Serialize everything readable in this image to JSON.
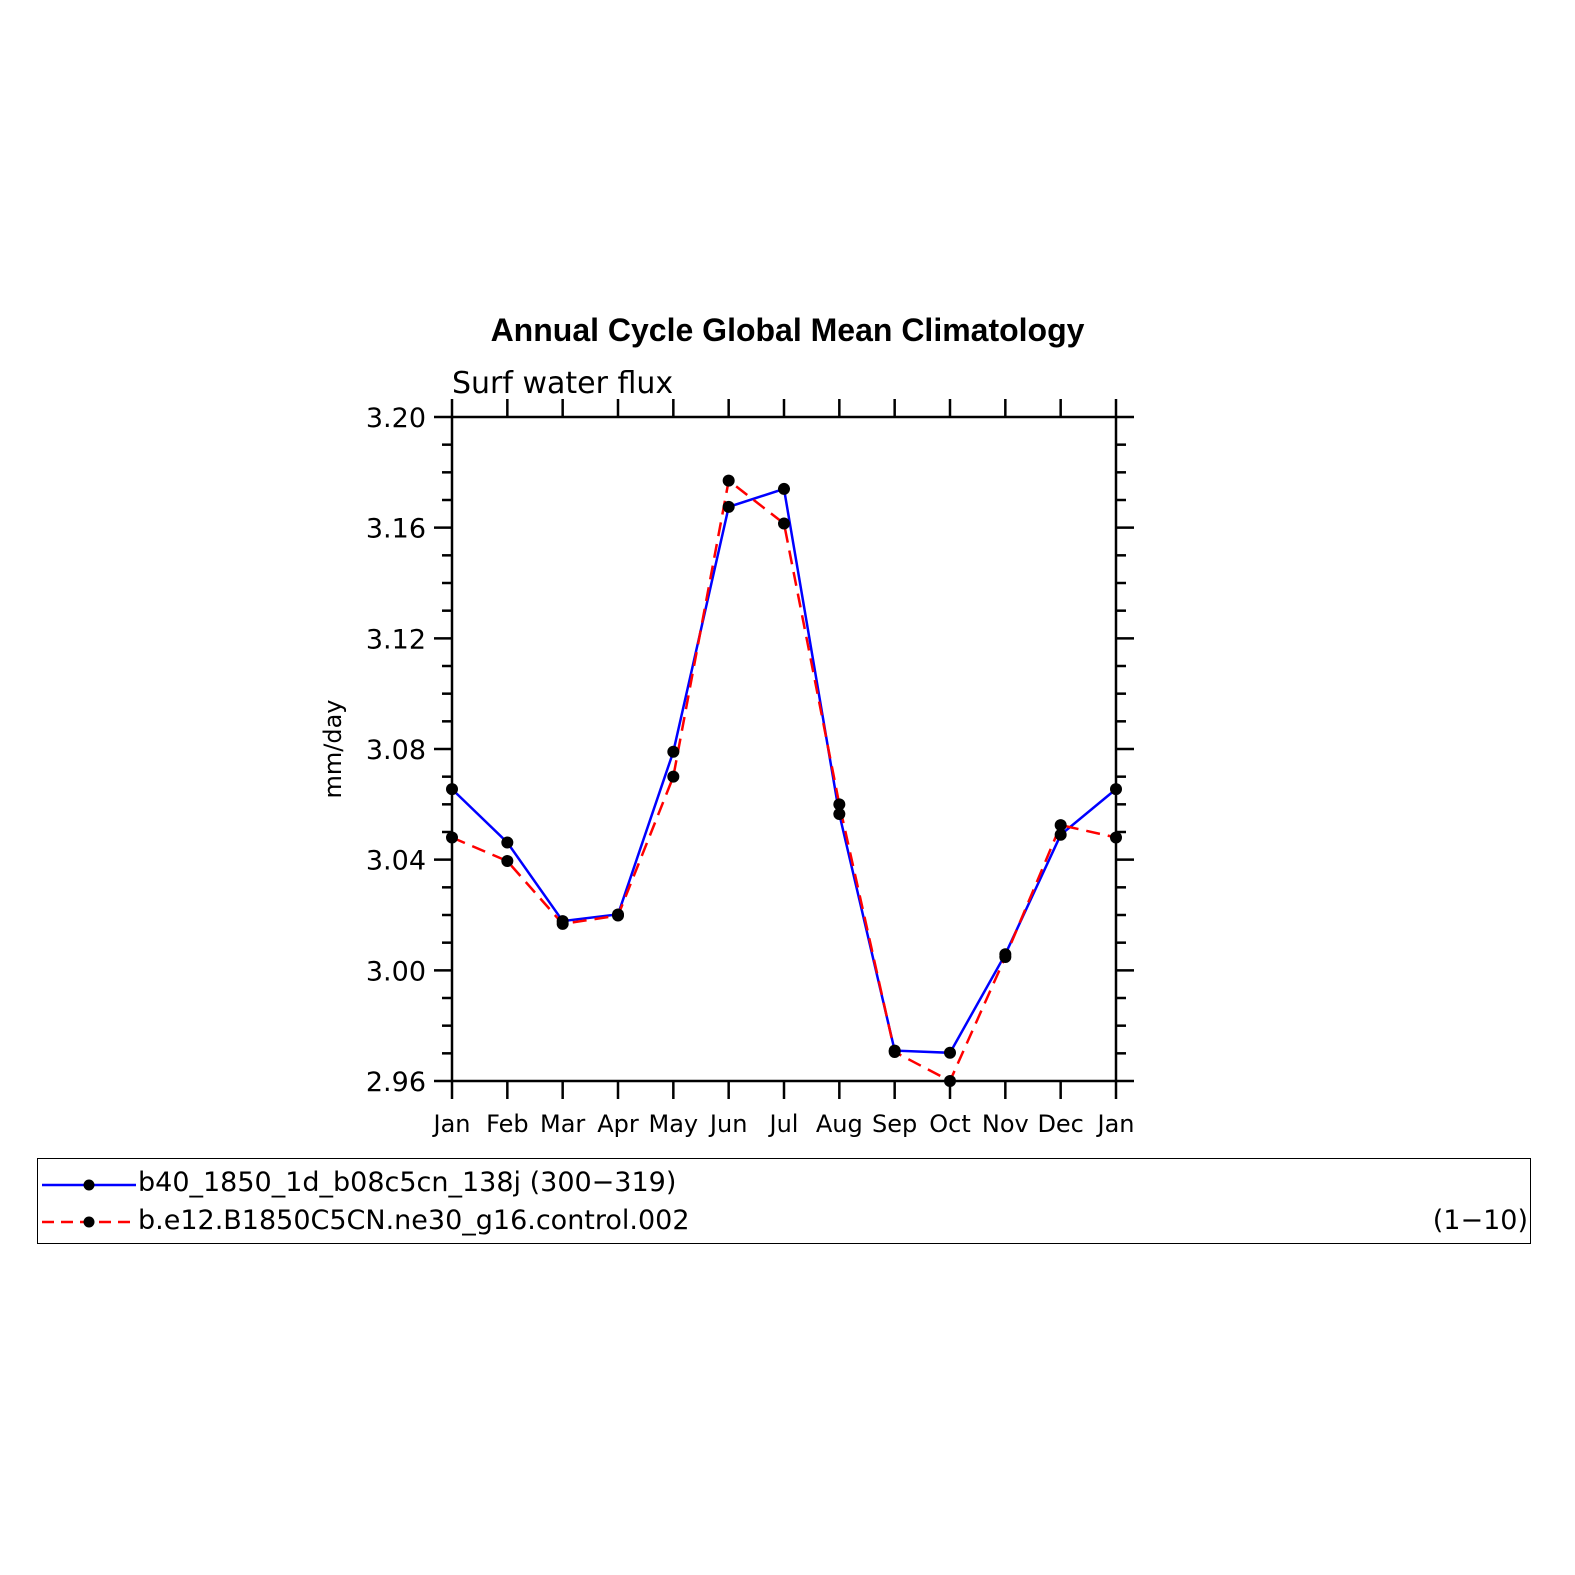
{
  "chart_data": {
    "type": "line",
    "title": "Annual Cycle Global Mean Climatology",
    "subtitle": "Surf water flux",
    "ylabel": "mm/day",
    "xlabel": "",
    "categories": [
      "Jan",
      "Feb",
      "Mar",
      "Apr",
      "May",
      "Jun",
      "Jul",
      "Aug",
      "Sep",
      "Oct",
      "Nov",
      "Dec",
      "Jan"
    ],
    "ylim": [
      2.96,
      3.2
    ],
    "yticks": [
      "3.20",
      "3.16",
      "3.12",
      "3.08",
      "3.04",
      "3.00",
      "2.96"
    ],
    "series": [
      {
        "name": "b40_1850_1d_b08c5cn_138j (300−319)",
        "color": "#0000ff",
        "style": "solid",
        "values": [
          3.0655,
          3.0462,
          3.0178,
          3.0202,
          3.079,
          3.1675,
          3.174,
          3.0565,
          2.971,
          2.9702,
          3.0058,
          3.049,
          3.0655
        ]
      },
      {
        "name": "b.e12.B1850C5CN.ne30_g16.control.002",
        "extra": "(1−10)",
        "color": "#ff0000",
        "style": "dashed",
        "values": [
          3.048,
          3.0395,
          3.0168,
          3.0198,
          3.07,
          3.177,
          3.1615,
          3.06,
          2.9705,
          2.96,
          3.0048,
          3.0525,
          3.048
        ]
      }
    ],
    "grid": false,
    "legend_placement": "bottom"
  }
}
